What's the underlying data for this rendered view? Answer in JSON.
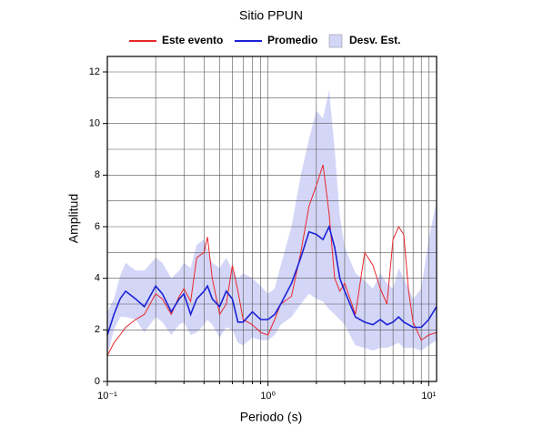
{
  "chart_data": {
    "type": "line",
    "title": "Sitio PPUN",
    "x_label": "Periodo (s)",
    "y_label": "Amplitud",
    "log_x": true,
    "grid": true,
    "xlim": [
      0.1,
      11.2
    ],
    "ylim": [
      0,
      12.6
    ],
    "xticks": [
      {
        "value": 0.1,
        "label": "10⁻¹"
      },
      {
        "value": 1,
        "label": "10⁰"
      },
      {
        "value": 10,
        "label": "10¹"
      }
    ],
    "xgrid_minor": [
      0.2,
      0.3,
      0.4,
      0.5,
      0.6,
      0.7,
      0.8,
      0.9,
      2,
      3,
      4,
      5,
      6,
      7,
      8,
      9
    ],
    "yticks": [
      0,
      2,
      4,
      6,
      8,
      10,
      12
    ],
    "ygrid_minor": [
      1,
      3,
      5,
      7,
      9,
      11
    ],
    "x": [
      0.1,
      0.11,
      0.12,
      0.13,
      0.15,
      0.17,
      0.2,
      0.22,
      0.25,
      0.28,
      0.3,
      0.33,
      0.36,
      0.4,
      0.42,
      0.45,
      0.5,
      0.55,
      0.6,
      0.65,
      0.7,
      0.8,
      0.9,
      1.0,
      1.1,
      1.2,
      1.4,
      1.6,
      1.8,
      2.0,
      2.2,
      2.4,
      2.6,
      2.8,
      3.0,
      3.5,
      4,
      4.5,
      5,
      5.5,
      6,
      6.5,
      7,
      7.5,
      8,
      9,
      10,
      11.2
    ],
    "series": [
      {
        "name": "Este evento",
        "color": "#e8272b",
        "values": [
          1.0,
          1.5,
          1.8,
          2.1,
          2.4,
          2.6,
          3.4,
          3.2,
          2.6,
          3.3,
          3.6,
          3.1,
          4.8,
          5.0,
          5.6,
          4.0,
          2.6,
          3.0,
          4.5,
          3.5,
          2.4,
          2.2,
          1.9,
          1.8,
          2.4,
          3.0,
          3.3,
          5.0,
          6.8,
          7.6,
          8.4,
          6.5,
          4.0,
          3.5,
          3.8,
          2.6,
          5.0,
          4.5,
          3.6,
          3.0,
          5.5,
          6.0,
          5.7,
          3.5,
          2.3,
          1.6,
          1.8,
          1.9
        ]
      },
      {
        "name": "Promedio",
        "color": "#1a22d6",
        "values": [
          1.8,
          2.6,
          3.2,
          3.5,
          3.2,
          2.9,
          3.7,
          3.4,
          2.7,
          3.2,
          3.4,
          2.6,
          3.2,
          3.5,
          3.7,
          3.2,
          2.9,
          3.5,
          3.2,
          2.3,
          2.3,
          2.7,
          2.4,
          2.4,
          2.6,
          3.0,
          3.8,
          4.8,
          5.8,
          5.7,
          5.5,
          6.0,
          5.2,
          4.0,
          3.5,
          2.5,
          2.3,
          2.2,
          2.4,
          2.2,
          2.3,
          2.5,
          2.3,
          2.2,
          2.1,
          2.1,
          2.4,
          2.9
        ]
      },
      {
        "name": "Desv. Est.",
        "color": "#d4d6f8",
        "upper": [
          2.7,
          3.2,
          4.1,
          4.6,
          4.3,
          4.3,
          4.8,
          4.6,
          4.0,
          4.3,
          4.6,
          4.4,
          5.3,
          5.5,
          5.1,
          4.6,
          4.4,
          4.8,
          4.3,
          4.0,
          4.2,
          4.0,
          3.7,
          3.4,
          3.6,
          4.5,
          6.0,
          8.0,
          9.4,
          10.5,
          10.2,
          11.3,
          9.0,
          6.4,
          5.2,
          4.2,
          3.9,
          3.6,
          4.2,
          3.8,
          3.6,
          4.4,
          4.0,
          3.6,
          3.2,
          3.6,
          5.5,
          7.0
        ],
        "lower": [
          1.0,
          2.0,
          2.5,
          2.5,
          2.4,
          1.9,
          2.5,
          2.3,
          1.8,
          2.2,
          2.3,
          1.8,
          1.9,
          2.2,
          2.4,
          2.2,
          1.7,
          2.1,
          2.0,
          1.5,
          1.4,
          1.7,
          1.6,
          1.6,
          1.8,
          2.2,
          2.5,
          3.0,
          3.4,
          3.2,
          3.1,
          2.8,
          2.6,
          2.4,
          2.2,
          1.4,
          1.3,
          1.2,
          1.3,
          1.3,
          1.4,
          1.5,
          1.3,
          1.3,
          1.3,
          1.2,
          1.4,
          1.6
        ]
      }
    ]
  }
}
